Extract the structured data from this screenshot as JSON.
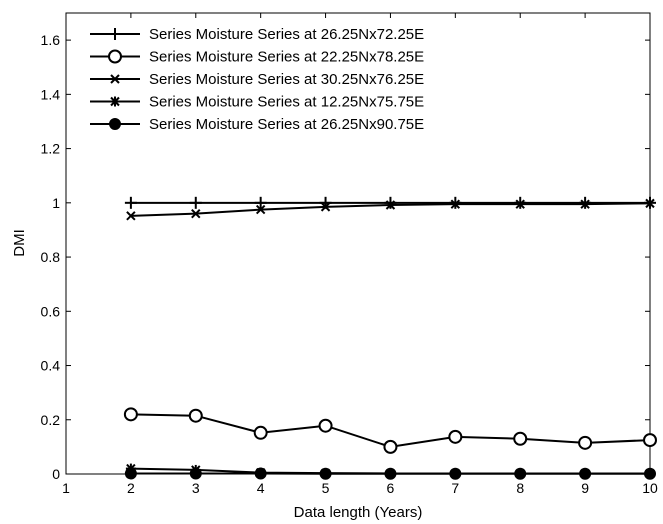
{
  "chart_data": {
    "type": "line",
    "title": "",
    "xlabel": "Data length (Years)",
    "ylabel": "DMI",
    "xlim": [
      1,
      10
    ],
    "ylim": [
      0,
      1.7
    ],
    "xticks": [
      1,
      2,
      3,
      4,
      5,
      6,
      7,
      8,
      9,
      10
    ],
    "yticks": [
      0,
      0.2,
      0.4,
      0.6,
      0.8,
      1,
      1.2,
      1.4,
      1.6
    ],
    "ytick_labels": [
      "0",
      "0.2",
      "0.4",
      "0.6",
      "0.8",
      "1",
      "1.2",
      "1.4",
      "1.6"
    ],
    "grid": false,
    "legend_position": "top-left",
    "line_color": "#000000",
    "x": [
      2,
      3,
      4,
      5,
      6,
      7,
      8,
      9,
      10
    ],
    "series": [
      {
        "name": "Series Moisture Series at 26.25Nx72.25E",
        "marker": "plus",
        "values": [
          1.0,
          1.0,
          1.0,
          1.0,
          1.0,
          1.0,
          1.0,
          1.0,
          1.0
        ]
      },
      {
        "name": "Series Moisture Series at 22.25Nx78.25E",
        "marker": "circle-open",
        "values": [
          0.22,
          0.215,
          0.152,
          0.178,
          0.1,
          0.137,
          0.13,
          0.115,
          0.125
        ]
      },
      {
        "name": "Series Moisture Series at 30.25Nx76.25E",
        "marker": "x",
        "values": [
          0.952,
          0.96,
          0.975,
          0.985,
          0.992,
          0.995,
          0.995,
          0.995,
          0.998
        ]
      },
      {
        "name": "Series Moisture Series at 12.25Nx75.75E",
        "marker": "star",
        "values": [
          0.02,
          0.015,
          0.005,
          0.003,
          0.002,
          0.002,
          0.002,
          0.002,
          0.002
        ]
      },
      {
        "name": "Series Moisture Series at 26.25Nx90.75E",
        "marker": "circle-filled",
        "values": [
          0.002,
          0.002,
          0.002,
          0.001,
          0.001,
          0.001,
          0.001,
          0.001,
          0.001
        ]
      }
    ]
  }
}
